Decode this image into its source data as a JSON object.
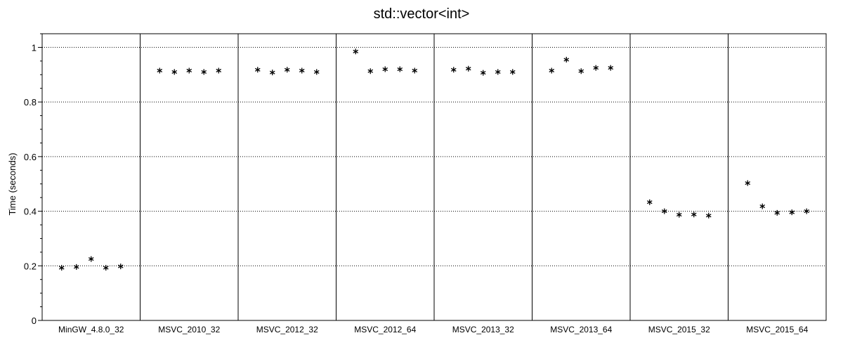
{
  "chart_data": {
    "type": "scatter",
    "title": "std::vector<int>",
    "xlabel": "",
    "ylabel": "Time (seconds)",
    "ylim": [
      0,
      1.05
    ],
    "y_ticks": [
      "0",
      "0.2",
      "0.4",
      "0.6",
      "0.8",
      "1"
    ],
    "grid": "horizontal-dotted",
    "marker": "asterisk",
    "marker_color": "#000000",
    "categories": [
      "MinGW_4.8.0_32",
      "MSVC_2010_32",
      "MSVC_2012_32",
      "MSVC_2012_64",
      "MSVC_2013_32",
      "MSVC_2013_64",
      "MSVC_2015_32",
      "MSVC_2015_64"
    ],
    "runs_per_category": 5,
    "values": [
      [
        0.193,
        0.196,
        0.225,
        0.193,
        0.198
      ],
      [
        0.915,
        0.91,
        0.915,
        0.91,
        0.915
      ],
      [
        0.918,
        0.908,
        0.918,
        0.915,
        0.91
      ],
      [
        0.985,
        0.913,
        0.92,
        0.92,
        0.915
      ],
      [
        0.918,
        0.922,
        0.907,
        0.91,
        0.91
      ],
      [
        0.915,
        0.955,
        0.913,
        0.925,
        0.925
      ],
      [
        0.433,
        0.4,
        0.387,
        0.388,
        0.384
      ],
      [
        0.503,
        0.418,
        0.394,
        0.396,
        0.4
      ]
    ]
  }
}
